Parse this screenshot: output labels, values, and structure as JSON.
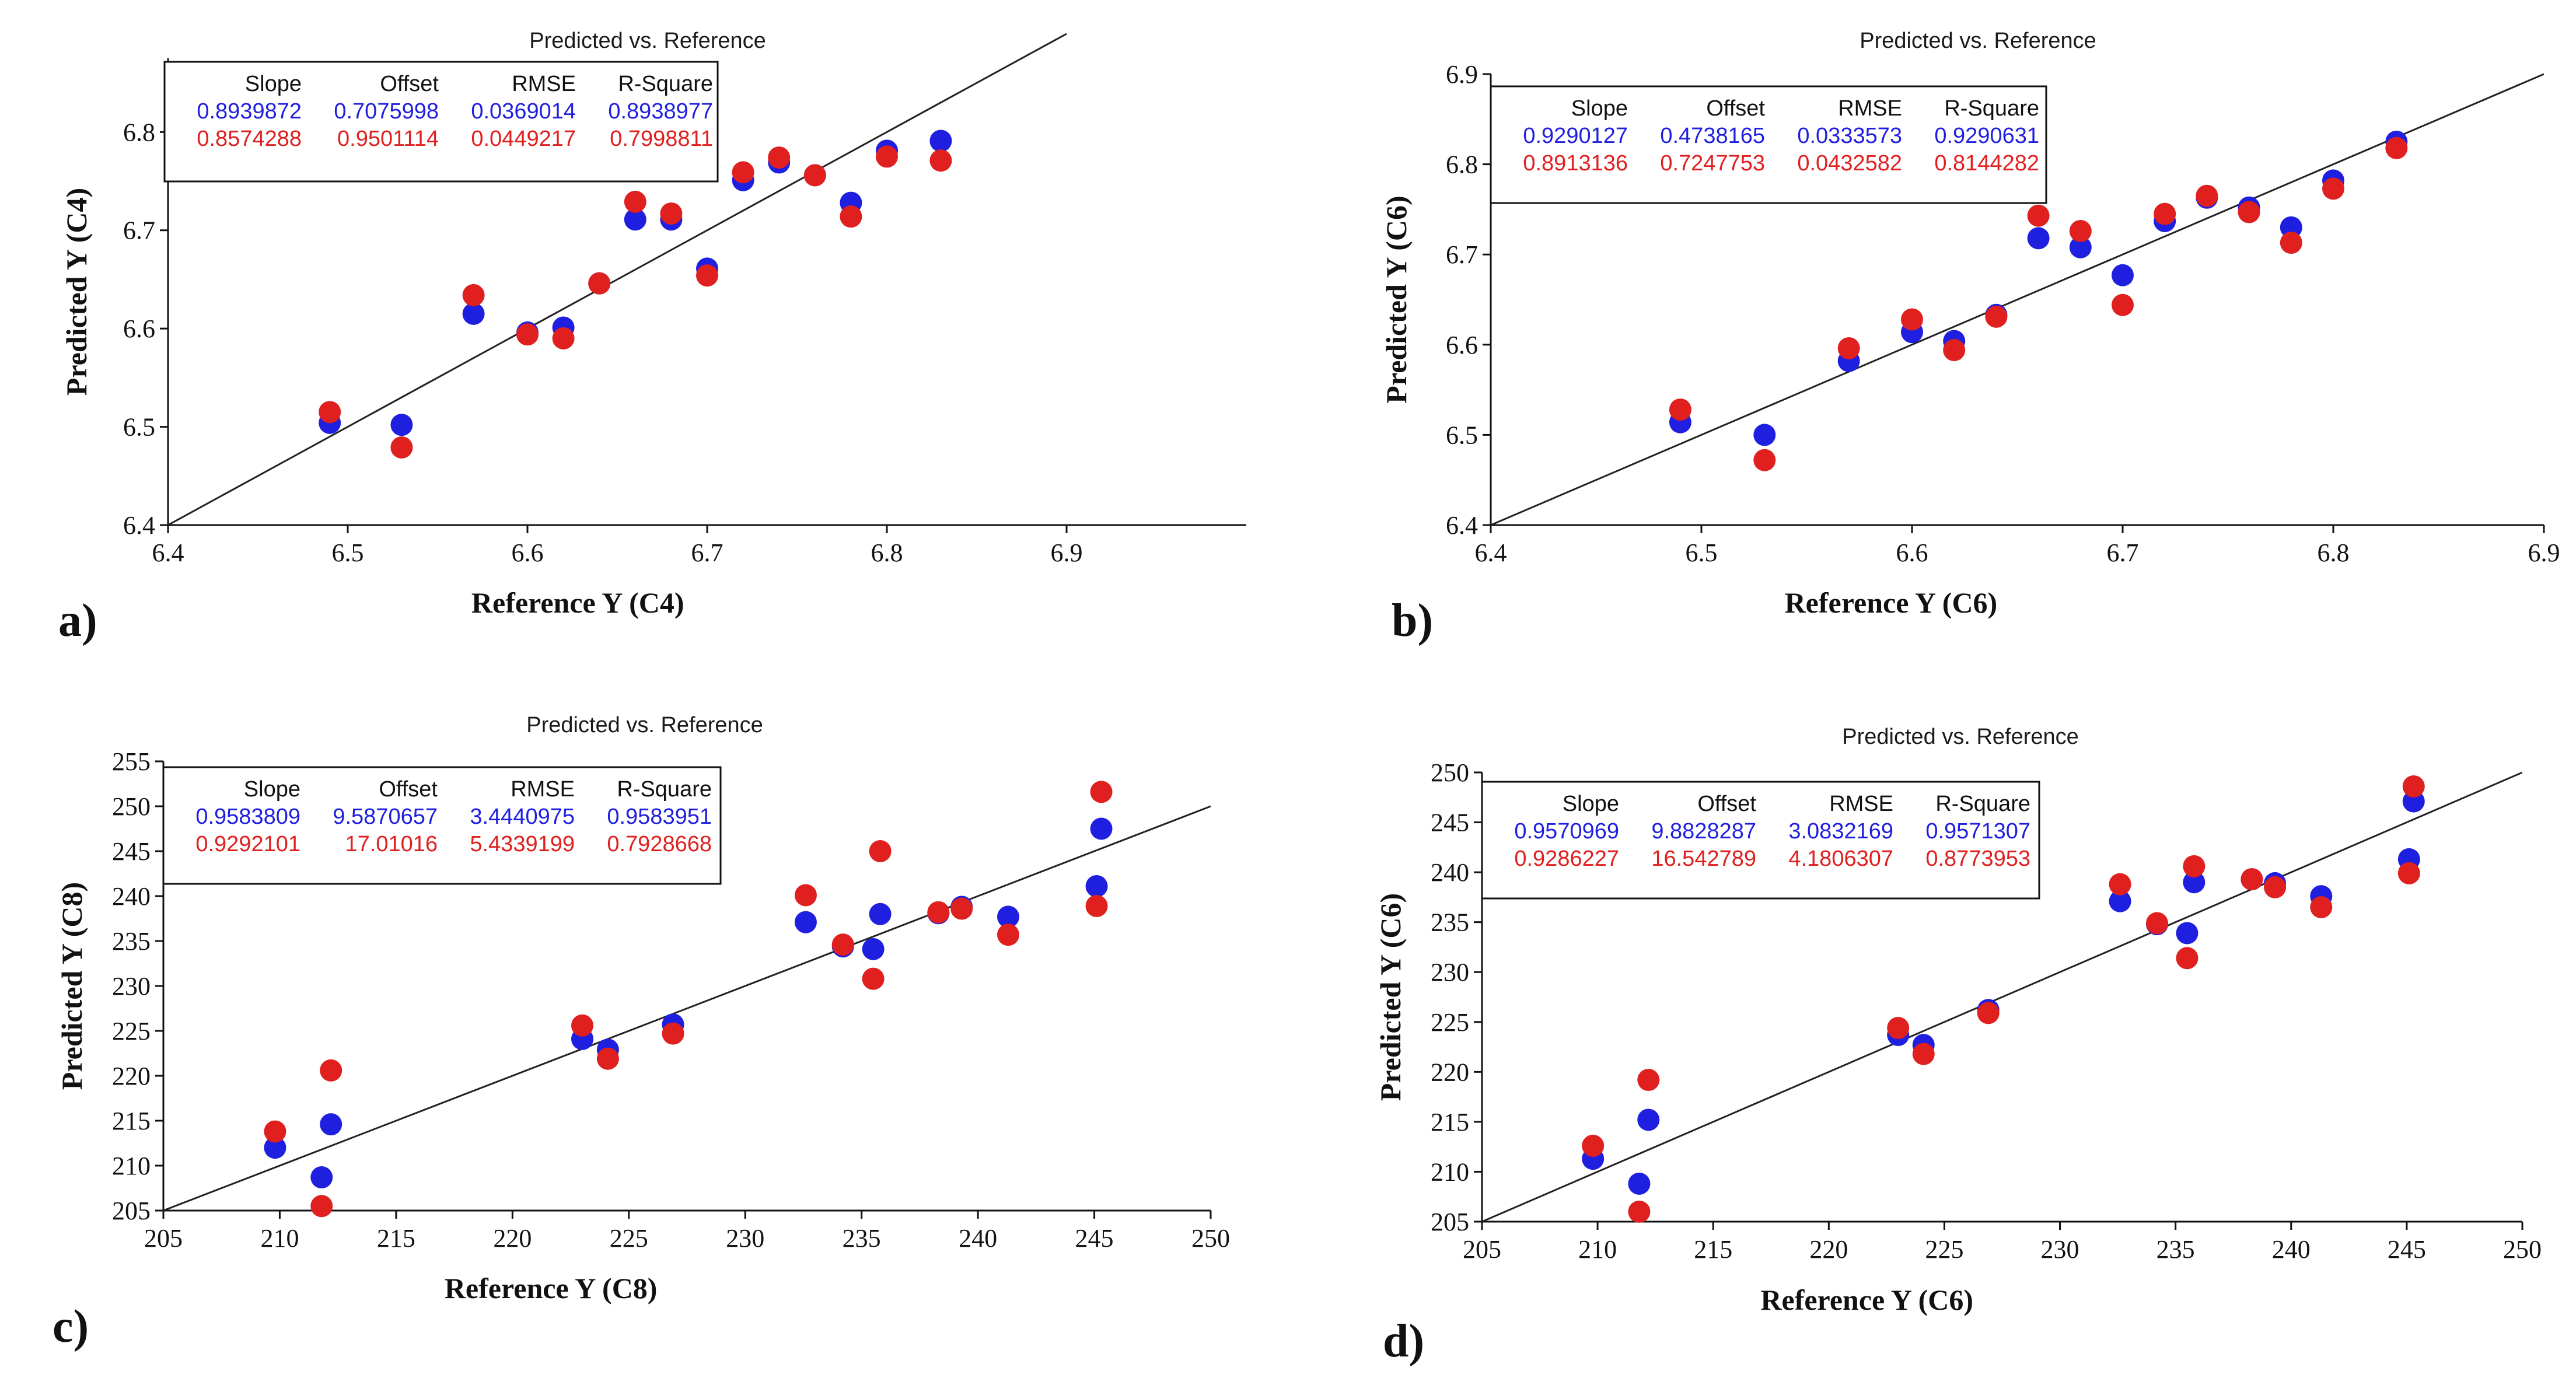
{
  "chart_data": [
    {
      "panel_label": "a)",
      "type": "scatter",
      "title": "Predicted vs. Reference",
      "xlabel": "Reference Y (C4)",
      "ylabel": "Predicted Y (C4)",
      "xlim": [
        6.4,
        7.0
      ],
      "ylim": [
        6.4,
        6.875
      ],
      "xticks": [
        "6.4",
        "6.5",
        "6.6",
        "6.7",
        "6.8",
        "6.9"
      ],
      "yticks": [
        "6.4",
        "6.5",
        "6.6",
        "6.7",
        "6.8"
      ],
      "legend": {
        "position": "top-left",
        "headers": [
          "Slope",
          "Offset",
          "RMSE",
          "R-Square"
        ],
        "rows": [
          {
            "color": "#1f1fe0",
            "values": [
              "0.8939872",
              "0.7075998",
              "0.0369014",
              "0.8938977"
            ]
          },
          {
            "color": "#e01f1f",
            "values": [
              "0.8574288",
              "0.9501114",
              "0.0449217",
              "0.7998811"
            ]
          }
        ]
      },
      "target_line": {
        "x": [
          6.4,
          6.9
        ],
        "y": [
          6.4,
          6.9
        ]
      },
      "series": [
        {
          "color": "#1f1fe0",
          "points": [
            [
              6.49,
              6.504
            ],
            [
              6.53,
              6.502
            ],
            [
              6.57,
              6.615
            ],
            [
              6.6,
              6.596
            ],
            [
              6.62,
              6.601
            ],
            [
              6.64,
              6.646
            ],
            [
              6.66,
              6.711
            ],
            [
              6.68,
              6.711
            ],
            [
              6.7,
              6.661
            ],
            [
              6.72,
              6.751
            ],
            [
              6.74,
              6.769
            ],
            [
              6.76,
              6.756
            ],
            [
              6.78,
              6.728
            ],
            [
              6.8,
              6.781
            ],
            [
              6.83,
              6.791
            ]
          ]
        },
        {
          "color": "#e01f1f",
          "points": [
            [
              6.49,
              6.515
            ],
            [
              6.53,
              6.479
            ],
            [
              6.57,
              6.634
            ],
            [
              6.6,
              6.594
            ],
            [
              6.62,
              6.59
            ],
            [
              6.64,
              6.646
            ],
            [
              6.66,
              6.729
            ],
            [
              6.68,
              6.717
            ],
            [
              6.7,
              6.654
            ],
            [
              6.72,
              6.759
            ],
            [
              6.74,
              6.774
            ],
            [
              6.76,
              6.756
            ],
            [
              6.78,
              6.714
            ],
            [
              6.8,
              6.775
            ],
            [
              6.83,
              6.771
            ]
          ]
        }
      ]
    },
    {
      "panel_label": "b)",
      "type": "scatter",
      "title": "Predicted vs. Reference",
      "xlabel": "Reference Y (C6)",
      "ylabel": "Predicted Y (C6)",
      "xlim": [
        6.4,
        6.9
      ],
      "ylim": [
        6.4,
        6.9
      ],
      "xticks": [
        "6.4",
        "6.5",
        "6.6",
        "6.7",
        "6.8",
        "6.9"
      ],
      "yticks": [
        "6.4",
        "6.5",
        "6.6",
        "6.7",
        "6.8",
        "6.9"
      ],
      "legend": {
        "position": "top-left",
        "headers": [
          "Slope",
          "Offset",
          "RMSE",
          "R-Square"
        ],
        "rows": [
          {
            "color": "#1f1fe0",
            "values": [
              "0.9290127",
              "0.4738165",
              "0.0333573",
              "0.9290631"
            ]
          },
          {
            "color": "#e01f1f",
            "values": [
              "0.8913136",
              "0.7247753",
              "0.0432582",
              "0.8144282"
            ]
          }
        ]
      },
      "target_line": {
        "x": [
          6.4,
          6.9
        ],
        "y": [
          6.4,
          6.9
        ]
      },
      "series": [
        {
          "color": "#1f1fe0",
          "points": [
            [
              6.49,
              6.514
            ],
            [
              6.53,
              6.5
            ],
            [
              6.57,
              6.582
            ],
            [
              6.6,
              6.614
            ],
            [
              6.62,
              6.604
            ],
            [
              6.64,
              6.633
            ],
            [
              6.66,
              6.718
            ],
            [
              6.68,
              6.708
            ],
            [
              6.7,
              6.677
            ],
            [
              6.72,
              6.737
            ],
            [
              6.74,
              6.763
            ],
            [
              6.76,
              6.752
            ],
            [
              6.78,
              6.73
            ],
            [
              6.8,
              6.782
            ],
            [
              6.83,
              6.825
            ]
          ]
        },
        {
          "color": "#e01f1f",
          "points": [
            [
              6.49,
              6.528
            ],
            [
              6.53,
              6.472
            ],
            [
              6.57,
              6.596
            ],
            [
              6.6,
              6.628
            ],
            [
              6.62,
              6.594
            ],
            [
              6.64,
              6.631
            ],
            [
              6.66,
              6.743
            ],
            [
              6.68,
              6.726
            ],
            [
              6.7,
              6.644
            ],
            [
              6.72,
              6.745
            ],
            [
              6.74,
              6.765
            ],
            [
              6.76,
              6.747
            ],
            [
              6.78,
              6.713
            ],
            [
              6.8,
              6.773
            ],
            [
              6.83,
              6.818
            ]
          ]
        }
      ]
    },
    {
      "panel_label": "c)",
      "type": "scatter",
      "title": "Predicted vs. Reference",
      "xlabel": "Reference Y (C8)",
      "ylabel": "Predicted Y (C8)",
      "xlim": [
        205,
        250
      ],
      "ylim": [
        205,
        255
      ],
      "xticks": [
        "205",
        "210",
        "215",
        "220",
        "225",
        "230",
        "235",
        "240",
        "245",
        "250"
      ],
      "yticks": [
        "205",
        "210",
        "215",
        "220",
        "225",
        "230",
        "235",
        "240",
        "245",
        "250",
        "255"
      ],
      "legend": {
        "position": "top-left",
        "headers": [
          "Slope",
          "Offset",
          "RMSE",
          "R-Square"
        ],
        "rows": [
          {
            "color": "#1f1fe0",
            "values": [
              "0.9583809",
              "9.5870657",
              "3.4440975",
              "0.9583951"
            ]
          },
          {
            "color": "#e01f1f",
            "values": [
              "0.9292101",
              "17.01016",
              "5.4339199",
              "0.7928668"
            ]
          }
        ]
      },
      "target_line": {
        "x": [
          205,
          250
        ],
        "y": [
          205,
          250
        ]
      },
      "series": [
        {
          "color": "#1f1fe0",
          "points": [
            [
              209.8,
              212.0
            ],
            [
              211.8,
              208.7
            ],
            [
              212.2,
              214.6
            ],
            [
              223.0,
              224.1
            ],
            [
              224.1,
              222.9
            ],
            [
              226.9,
              225.7
            ],
            [
              232.6,
              237.1
            ],
            [
              234.2,
              234.4
            ],
            [
              235.5,
              234.1
            ],
            [
              235.8,
              238.0
            ],
            [
              238.3,
              238.1
            ],
            [
              239.3,
              238.8
            ],
            [
              241.3,
              237.7
            ],
            [
              245.1,
              241.1
            ],
            [
              245.3,
              247.5
            ]
          ]
        },
        {
          "color": "#e01f1f",
          "points": [
            [
              209.8,
              213.8
            ],
            [
              211.8,
              205.5
            ],
            [
              212.2,
              220.6
            ],
            [
              223.0,
              225.6
            ],
            [
              224.1,
              221.9
            ],
            [
              226.9,
              224.7
            ],
            [
              232.6,
              240.1
            ],
            [
              234.2,
              234.6
            ],
            [
              235.5,
              230.8
            ],
            [
              235.8,
              245.0
            ],
            [
              238.3,
              238.2
            ],
            [
              239.3,
              238.6
            ],
            [
              241.3,
              235.7
            ],
            [
              245.1,
              238.9
            ],
            [
              245.3,
              251.6
            ]
          ]
        }
      ]
    },
    {
      "panel_label": "d)",
      "type": "scatter",
      "title": "Predicted vs. Reference",
      "xlabel": "Reference Y (C6)",
      "ylabel": "Predicted Y (C6)",
      "xlim": [
        205,
        250
      ],
      "ylim": [
        205,
        250
      ],
      "xticks": [
        "205",
        "210",
        "215",
        "220",
        "225",
        "230",
        "235",
        "240",
        "245",
        "250"
      ],
      "yticks": [
        "205",
        "210",
        "215",
        "220",
        "225",
        "230",
        "235",
        "240",
        "245",
        "250"
      ],
      "legend": {
        "position": "top-left",
        "headers": [
          "Slope",
          "Offset",
          "RMSE",
          "R-Square"
        ],
        "rows": [
          {
            "color": "#1f1fe0",
            "values": [
              "0.9570969",
              "9.8828287",
              "3.0832169",
              "0.9571307"
            ]
          },
          {
            "color": "#e01f1f",
            "values": [
              "0.9286227",
              "16.542789",
              "4.1806307",
              "0.8773953"
            ]
          }
        ]
      },
      "target_line": {
        "x": [
          205,
          250
        ],
        "y": [
          205,
          250
        ]
      },
      "series": [
        {
          "color": "#1f1fe0",
          "points": [
            [
              209.8,
              211.3
            ],
            [
              211.8,
              208.8
            ],
            [
              212.2,
              215.2
            ],
            [
              223.0,
              223.7
            ],
            [
              224.1,
              222.7
            ],
            [
              226.9,
              226.2
            ],
            [
              232.6,
              237.1
            ],
            [
              234.2,
              234.8
            ],
            [
              235.5,
              233.9
            ],
            [
              235.8,
              239.0
            ],
            [
              238.3,
              239.3
            ],
            [
              239.3,
              238.9
            ],
            [
              241.3,
              237.6
            ],
            [
              245.1,
              241.3
            ],
            [
              245.3,
              247.1
            ]
          ]
        },
        {
          "color": "#e01f1f",
          "points": [
            [
              209.8,
              212.6
            ],
            [
              211.8,
              206.0
            ],
            [
              212.2,
              219.2
            ],
            [
              223.0,
              224.4
            ],
            [
              224.1,
              221.8
            ],
            [
              226.9,
              225.9
            ],
            [
              232.6,
              238.8
            ],
            [
              234.2,
              234.9
            ],
            [
              235.5,
              231.4
            ],
            [
              235.8,
              240.6
            ],
            [
              238.3,
              239.3
            ],
            [
              239.3,
              238.5
            ],
            [
              241.3,
              236.5
            ],
            [
              245.1,
              239.9
            ],
            [
              245.3,
              248.6
            ]
          ]
        }
      ]
    }
  ]
}
